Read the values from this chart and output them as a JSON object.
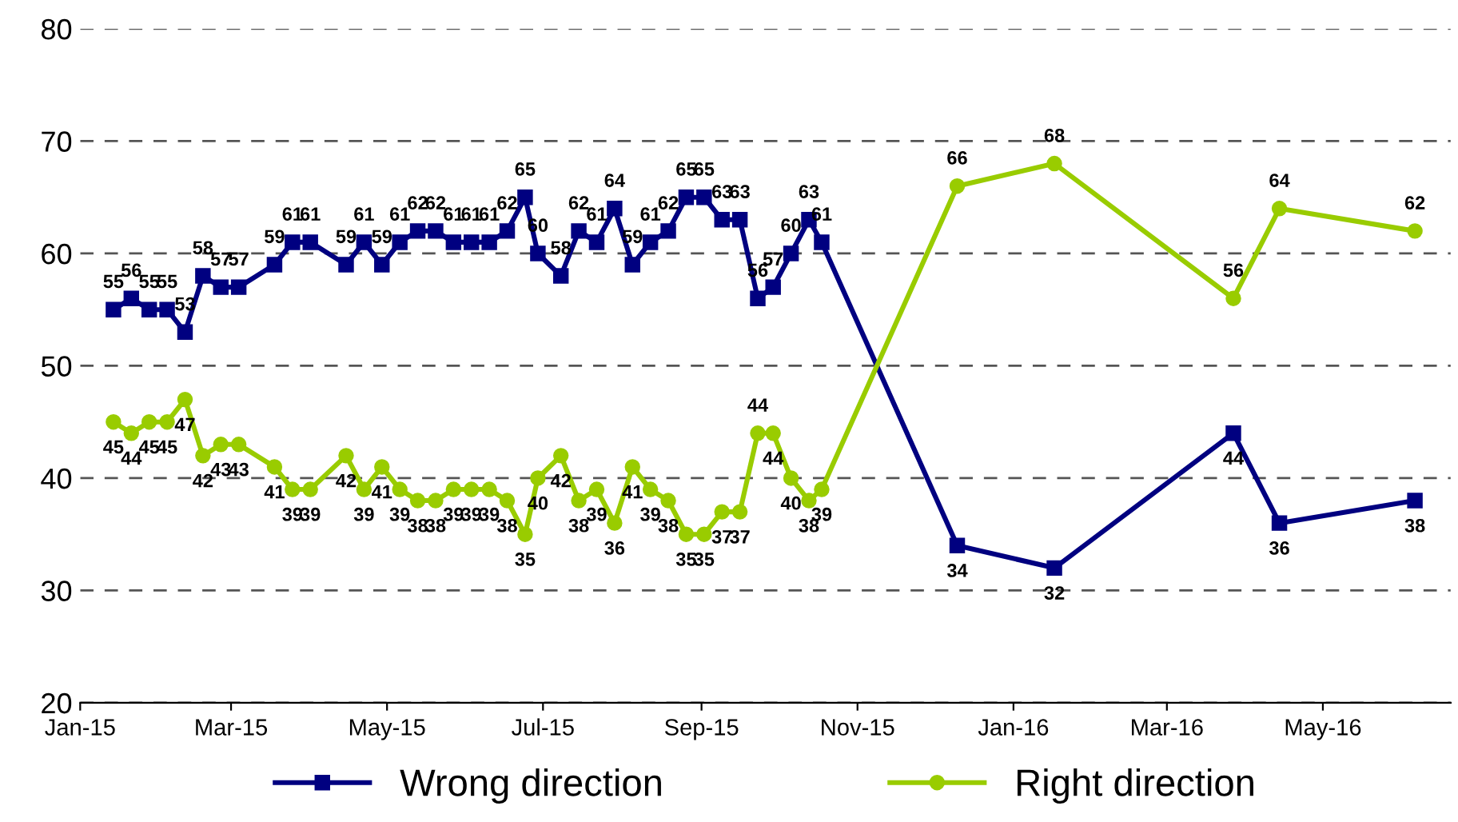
{
  "chart_data": {
    "type": "line",
    "x": [
      "2015-01-14",
      "2015-01-21",
      "2015-01-28",
      "2015-02-04",
      "2015-02-11",
      "2015-02-18",
      "2015-02-25",
      "2015-03-04",
      "2015-03-18",
      "2015-03-25",
      "2015-04-01",
      "2015-04-15",
      "2015-04-22",
      "2015-04-29",
      "2015-05-06",
      "2015-05-13",
      "2015-05-20",
      "2015-05-27",
      "2015-06-03",
      "2015-06-10",
      "2015-06-17",
      "2015-06-24",
      "2015-06-29",
      "2015-07-08",
      "2015-07-15",
      "2015-07-22",
      "2015-07-29",
      "2015-08-05",
      "2015-08-12",
      "2015-08-19",
      "2015-08-26",
      "2015-09-02",
      "2015-09-09",
      "2015-09-16",
      "2015-09-23",
      "2015-09-29",
      "2015-10-06",
      "2015-10-13",
      "2015-10-18",
      "2015-12-10",
      "2016-01-17",
      "2016-03-27",
      "2016-04-14",
      "2016-06-06"
    ],
    "series": [
      {
        "name": "Wrong direction",
        "color": "#000080",
        "marker": "square",
        "values": [
          55,
          56,
          55,
          55,
          53,
          58,
          57,
          57,
          59,
          61,
          61,
          59,
          61,
          59,
          61,
          62,
          62,
          61,
          61,
          61,
          62,
          65,
          60,
          58,
          62,
          61,
          64,
          59,
          61,
          62,
          65,
          65,
          63,
          63,
          56,
          57,
          60,
          63,
          61,
          34,
          32,
          44,
          36,
          38
        ]
      },
      {
        "name": "Right direction",
        "color": "#99cc00",
        "marker": "circle",
        "values": [
          45,
          44,
          45,
          45,
          47,
          42,
          43,
          43,
          41,
          39,
          39,
          42,
          39,
          41,
          39,
          38,
          38,
          39,
          39,
          39,
          38,
          35,
          40,
          42,
          38,
          39,
          36,
          41,
          39,
          38,
          35,
          35,
          37,
          37,
          44,
          44,
          40,
          38,
          39,
          66,
          68,
          56,
          64,
          62
        ]
      }
    ],
    "xlim": [
      "2015-01-01",
      "2016-06-20"
    ],
    "xticks": [
      {
        "value": "2015-01-01",
        "label": "Jan-15"
      },
      {
        "value": "2015-03-01",
        "label": "Mar-15"
      },
      {
        "value": "2015-05-01",
        "label": "May-15"
      },
      {
        "value": "2015-07-01",
        "label": "Jul-15"
      },
      {
        "value": "2015-09-01",
        "label": "Sep-15"
      },
      {
        "value": "2015-11-01",
        "label": "Nov-15"
      },
      {
        "value": "2016-01-01",
        "label": "Jan-16"
      },
      {
        "value": "2016-03-01",
        "label": "Mar-16"
      },
      {
        "value": "2016-05-01",
        "label": "May-16"
      }
    ],
    "ylim": [
      20,
      80
    ],
    "yticks": [
      20,
      30,
      40,
      50,
      60,
      70,
      80
    ],
    "grid": "y",
    "line_style": "solid",
    "data_labels": true,
    "legend": "bottom"
  }
}
